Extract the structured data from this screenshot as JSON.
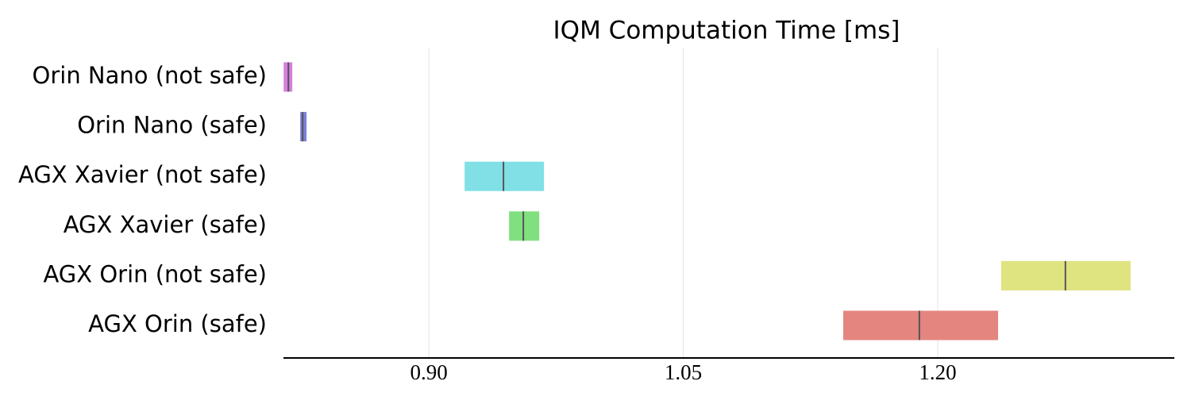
{
  "chart_data": {
    "type": "interval",
    "title": "IQM Computation Time [ms]",
    "categories": [
      "Orin Nano (not safe)",
      "Orin Nano (safe)",
      "AGX Xavier (not safe)",
      "AGX Xavier (safe)",
      "AGX Orin (not safe)",
      "AGX Orin (safe)"
    ],
    "low": [
      0.8144,
      0.8242,
      0.9211,
      0.9473,
      1.2374,
      1.1443
    ],
    "high": [
      0.8195,
      0.8279,
      0.9679,
      0.9651,
      1.3137,
      1.2356
    ],
    "median": [
      0.8172,
      0.8256,
      0.944,
      0.9557,
      1.2753,
      1.1892
    ],
    "colors": [
      "#d77fdc",
      "#7a80d6",
      "#80e0e6",
      "#80e080",
      "#dfe380",
      "#e4867f"
    ],
    "xlim": [
      0.8143,
      1.3395
    ],
    "xticks": [
      {
        "value": 0.9,
        "label": "0.90"
      },
      {
        "value": 1.05,
        "label": "1.05"
      },
      {
        "value": 1.2,
        "label": "1.20"
      }
    ],
    "grid": true
  }
}
